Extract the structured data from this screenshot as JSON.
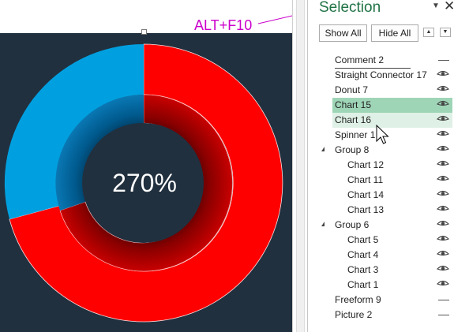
{
  "slide": {
    "shortcut_hint": "ALT+F10",
    "center_value": "270%",
    "colors": {
      "background": "#21303f",
      "outer_red": "#ff0000",
      "outer_blue": "#00a0e0",
      "inner_red_dark": "#8a0000",
      "inner_blue_dark": "#005a8e",
      "annotation": "#cc00cc"
    }
  },
  "pane": {
    "title": "Selection",
    "show_all_label": "Show All",
    "hide_all_label": "Hide All",
    "menu_icon": "dropdown-triangle-icon",
    "close_icon": "close-icon",
    "items": [
      {
        "label": "Comment 2",
        "visibility": "none",
        "indent": 0,
        "state": "normal"
      },
      {
        "label": "Straight Connector 17",
        "visibility": "visible",
        "indent": 0,
        "state": "normal"
      },
      {
        "label": "Donut 7",
        "visibility": "visible",
        "indent": 0,
        "state": "normal"
      },
      {
        "label": "Chart 15",
        "visibility": "visible",
        "indent": 0,
        "state": "selected"
      },
      {
        "label": "Chart 16",
        "visibility": "visible",
        "indent": 0,
        "state": "hover"
      },
      {
        "label": "Spinner 1",
        "visibility": "visible",
        "indent": 0,
        "state": "normal"
      },
      {
        "label": "Group 8",
        "visibility": "visible",
        "indent": 0,
        "state": "normal",
        "expanded": true
      },
      {
        "label": "Chart 12",
        "visibility": "visible",
        "indent": 1,
        "state": "normal"
      },
      {
        "label": "Chart 11",
        "visibility": "visible",
        "indent": 1,
        "state": "normal"
      },
      {
        "label": "Chart 14",
        "visibility": "visible",
        "indent": 1,
        "state": "normal"
      },
      {
        "label": "Chart 13",
        "visibility": "visible",
        "indent": 1,
        "state": "normal"
      },
      {
        "label": "Group 6",
        "visibility": "visible",
        "indent": 0,
        "state": "normal",
        "expanded": true
      },
      {
        "label": "Chart 5",
        "visibility": "visible",
        "indent": 1,
        "state": "normal"
      },
      {
        "label": "Chart 4",
        "visibility": "visible",
        "indent": 1,
        "state": "normal"
      },
      {
        "label": "Chart 3",
        "visibility": "visible",
        "indent": 1,
        "state": "normal"
      },
      {
        "label": "Chart 1",
        "visibility": "visible",
        "indent": 1,
        "state": "normal"
      },
      {
        "label": "Freeform 9",
        "visibility": "none",
        "indent": 0,
        "state": "normal"
      },
      {
        "label": "Picture 2",
        "visibility": "none",
        "indent": 0,
        "state": "normal"
      }
    ]
  }
}
